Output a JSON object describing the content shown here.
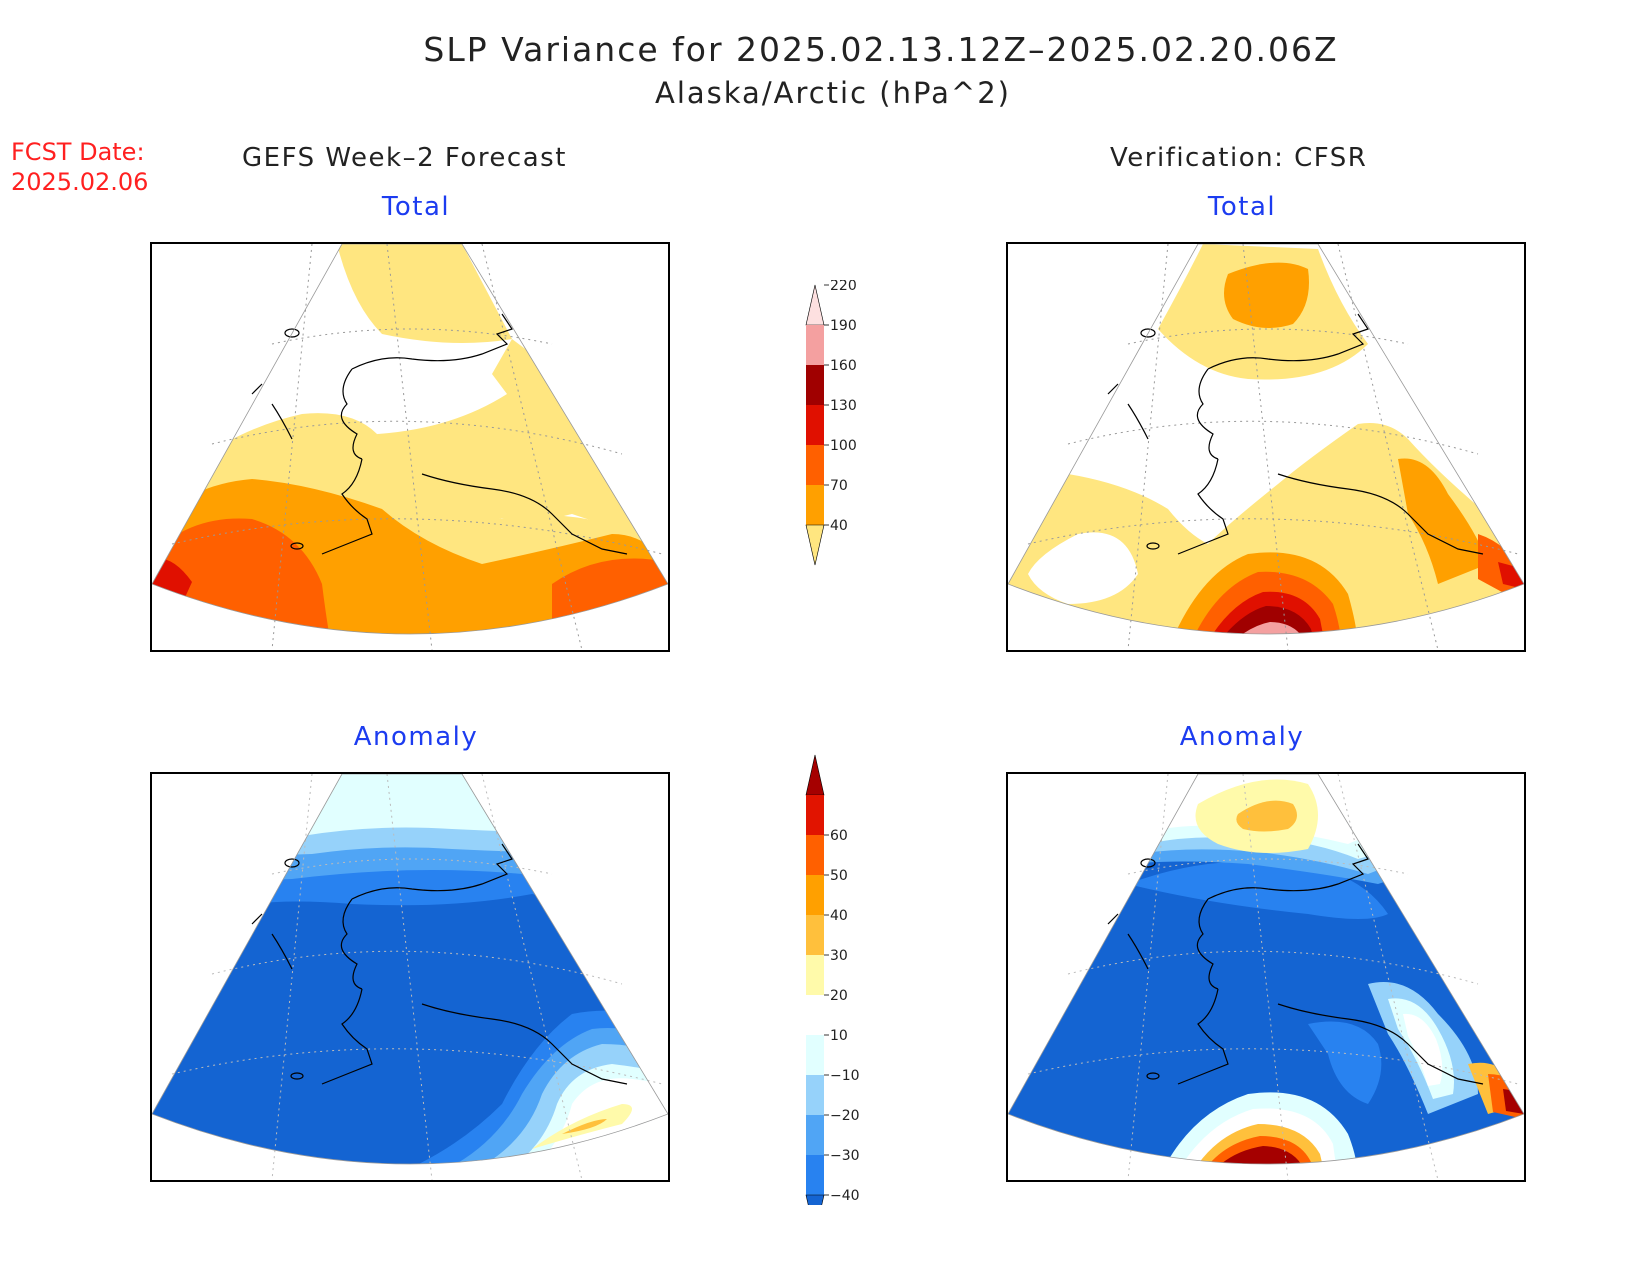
{
  "title": "SLP Variance for 2025.02.13.12Z–2025.02.20.06Z",
  "subtitle": "Alaska/Arctic (hPa^2)",
  "forecast_date": {
    "label": "FCST Date:",
    "value": "2025.02.06"
  },
  "columns": {
    "left": "GEFS Week–2 Forecast",
    "right": "Verification: CFSR"
  },
  "panels": {
    "forecast_total": "Total",
    "verification_total": "Total",
    "forecast_anomaly": "Anomaly",
    "verification_anomaly": "Anomaly"
  },
  "total_colorbar": {
    "ticks": [
      "40",
      "70",
      "100",
      "130",
      "160",
      "190",
      "220"
    ],
    "colors": [
      "#ffe680",
      "#ffa000",
      "#ff6000",
      "#e01000",
      "#a00000",
      "#f4a0a0",
      "#fde0e0"
    ]
  },
  "anomaly_colorbar": {
    "ticks": [
      "−40",
      "−30",
      "−20",
      "−10",
      "10",
      "20",
      "30",
      "40",
      "50",
      "60"
    ],
    "colors": [
      "#1464d2",
      "#2882f0",
      "#50a5f5",
      "#96d2fa",
      "#e1ffff",
      "#ffffff",
      "#fffaaa",
      "#ffc03c",
      "#ffa000",
      "#ff6000",
      "#e11400",
      "#a50000"
    ]
  }
}
